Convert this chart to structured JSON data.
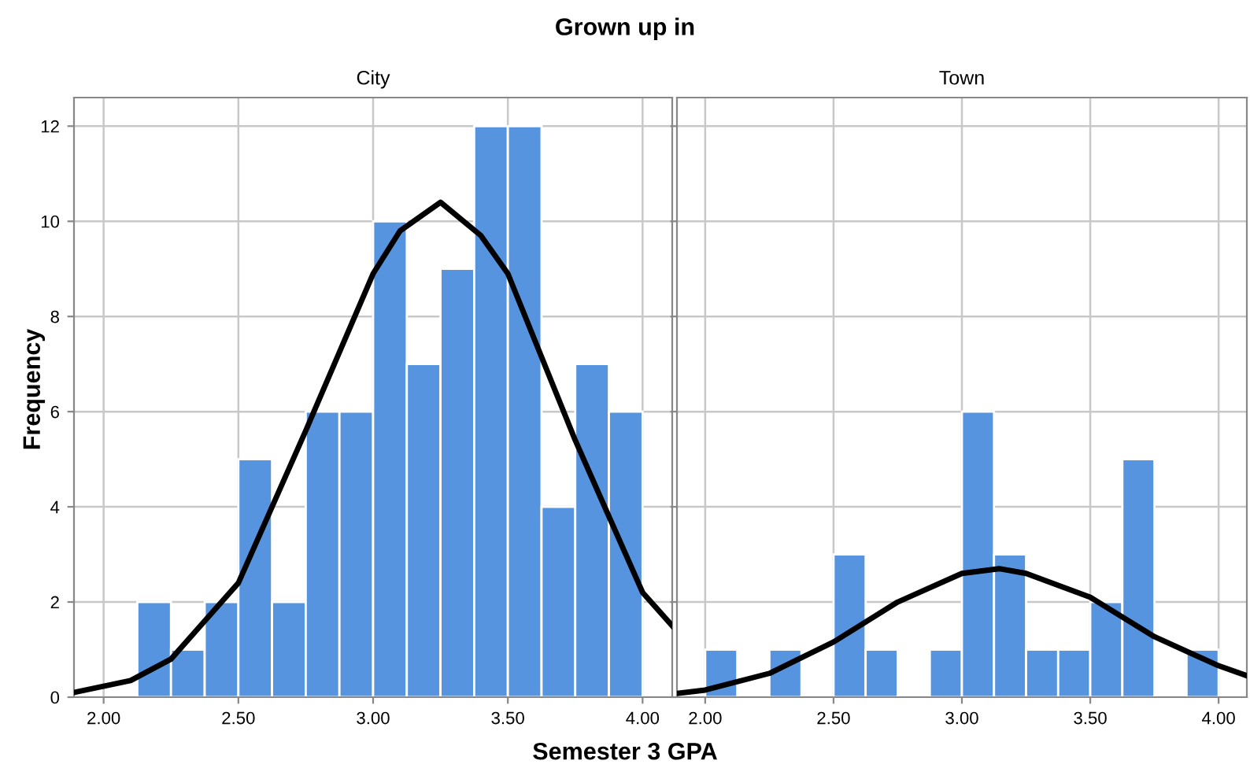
{
  "chart_data": [
    {
      "type": "histogram",
      "title": "City",
      "annotations": [
        "Grown up in"
      ],
      "xlabel": "Semester 3 GPA",
      "ylabel": "Frequency",
      "color": "#5794e0",
      "bins": [
        2.125,
        2.25,
        2.375,
        2.5,
        2.625,
        2.75,
        2.875,
        3.0,
        3.125,
        3.25,
        3.375,
        3.5,
        3.625,
        3.75,
        3.875,
        4.0
      ],
      "values": [
        2,
        1,
        2,
        5,
        2,
        6,
        6,
        10,
        7,
        9,
        12,
        12,
        4,
        7,
        6
      ],
      "series": [
        {
          "type": "line",
          "color": "#000000",
          "x": [
            1.89,
            2.1,
            2.25,
            2.5,
            2.75,
            3.0,
            3.1,
            3.25,
            3.4,
            3.5,
            3.75,
            4.0,
            4.11
          ],
          "values": [
            0.1,
            0.35,
            0.8,
            2.4,
            5.6,
            8.9,
            9.8,
            10.4,
            9.7,
            8.9,
            5.4,
            2.2,
            1.5
          ]
        }
      ],
      "xlim": [
        1.89,
        4.11
      ],
      "xticks": [
        {
          "value": 2,
          "label": "2.00"
        },
        {
          "value": 2.5,
          "label": "2.50"
        },
        {
          "value": 3,
          "label": "3.00"
        },
        {
          "value": 3.5,
          "label": "3.50"
        },
        {
          "value": 4,
          "label": "4.00"
        }
      ],
      "ylim": [
        0,
        12.6
      ],
      "yticks": [
        0,
        2,
        4,
        6,
        8,
        10,
        12
      ],
      "grid": true
    },
    {
      "type": "histogram",
      "title": "Town",
      "color": "#5794e0",
      "bins": [
        2.0,
        2.125,
        2.25,
        2.375,
        2.5,
        2.625,
        2.75,
        2.875,
        3.0,
        3.125,
        3.25,
        3.375,
        3.5,
        3.625,
        3.75,
        3.875,
        4.0
      ],
      "values": [
        1,
        0,
        1,
        0,
        3,
        1,
        0,
        1,
        6,
        3,
        1,
        1,
        2,
        5,
        0,
        1
      ],
      "series": [
        {
          "type": "line",
          "color": "#000000",
          "x": [
            1.89,
            2.0,
            2.25,
            2.5,
            2.75,
            3.0,
            3.145,
            3.25,
            3.5,
            3.75,
            4.0,
            4.11
          ],
          "values": [
            0.08,
            0.15,
            0.5,
            1.16,
            2.0,
            2.6,
            2.7,
            2.6,
            2.1,
            1.27,
            0.66,
            0.45
          ]
        }
      ],
      "xlim": [
        1.89,
        4.11
      ],
      "xticks": [
        {
          "value": 2,
          "label": "2.00"
        },
        {
          "value": 2.5,
          "label": "2.50"
        },
        {
          "value": 3,
          "label": "3.00"
        },
        {
          "value": 3.5,
          "label": "3.50"
        },
        {
          "value": 4,
          "label": "4.00"
        }
      ],
      "ylim": [
        0,
        12.6
      ],
      "yticks": [
        0,
        2,
        4,
        6,
        8,
        10,
        12
      ],
      "tick_labels": "x",
      "grid": true
    }
  ]
}
